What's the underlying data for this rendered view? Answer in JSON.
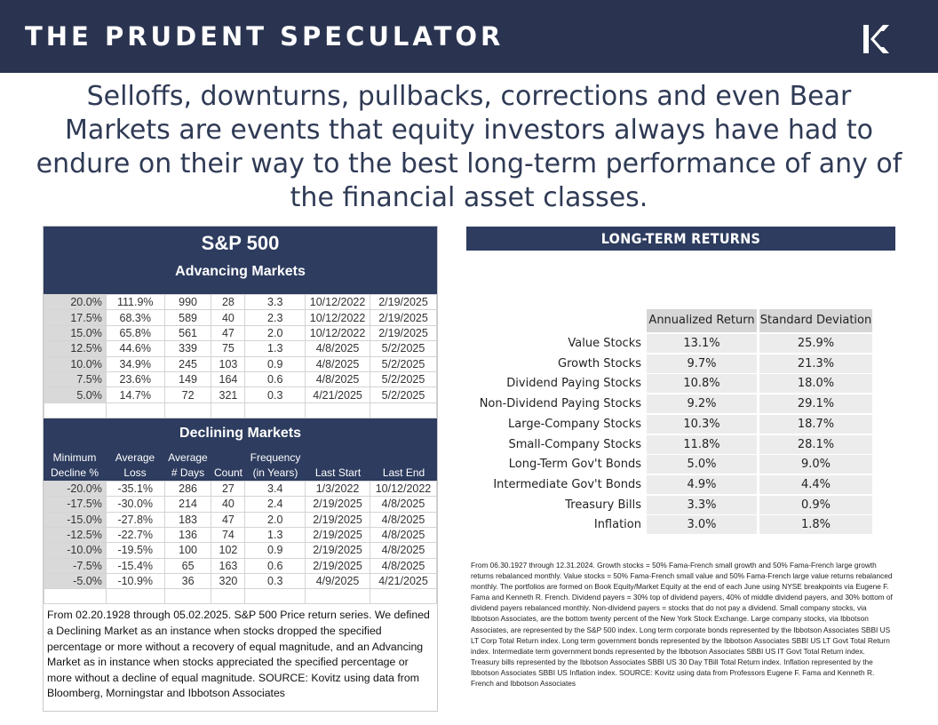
{
  "header": {
    "brand": "THE PRUDENT SPECULATOR"
  },
  "headline": "Selloffs, downturns, pullbacks, corrections and even Bear Markets are events that equity investors always have had to endure on their way to the best long-term performance of any of the financial asset classes.",
  "sp500": {
    "title": "S&P 500",
    "advancing_title": "Advancing Markets",
    "advancing_rows": [
      [
        "20.0%",
        "111.9%",
        "990",
        "28",
        "3.3",
        "10/12/2022",
        "2/19/2025"
      ],
      [
        "17.5%",
        "68.3%",
        "589",
        "40",
        "2.3",
        "10/12/2022",
        "2/19/2025"
      ],
      [
        "15.0%",
        "65.8%",
        "561",
        "47",
        "2.0",
        "10/12/2022",
        "2/19/2025"
      ],
      [
        "12.5%",
        "44.6%",
        "339",
        "75",
        "1.3",
        "4/8/2025",
        "5/2/2025"
      ],
      [
        "10.0%",
        "34.9%",
        "245",
        "103",
        "0.9",
        "4/8/2025",
        "5/2/2025"
      ],
      [
        "7.5%",
        "23.6%",
        "149",
        "164",
        "0.6",
        "4/8/2025",
        "5/2/2025"
      ],
      [
        "5.0%",
        "14.7%",
        "72",
        "321",
        "0.3",
        "4/21/2025",
        "5/2/2025"
      ]
    ],
    "declining_title": "Declining Markets",
    "declining_headers": {
      "row1": [
        "Minimum",
        "Average",
        "Average",
        "",
        "Frequency",
        "",
        ""
      ],
      "row2": [
        "Decline %",
        "Loss",
        "# Days",
        "Count",
        "(in Years)",
        "Last Start",
        "Last End"
      ]
    },
    "declining_rows": [
      [
        "-20.0%",
        "-35.1%",
        "286",
        "27",
        "3.4",
        "1/3/2022",
        "10/12/2022"
      ],
      [
        "-17.5%",
        "-30.0%",
        "214",
        "40",
        "2.4",
        "2/19/2025",
        "4/8/2025"
      ],
      [
        "-15.0%",
        "-27.8%",
        "183",
        "47",
        "2.0",
        "2/19/2025",
        "4/8/2025"
      ],
      [
        "-12.5%",
        "-22.7%",
        "136",
        "74",
        "1.3",
        "2/19/2025",
        "4/8/2025"
      ],
      [
        "-10.0%",
        "-19.5%",
        "100",
        "102",
        "0.9",
        "2/19/2025",
        "4/8/2025"
      ],
      [
        "-7.5%",
        "-15.4%",
        "65",
        "163",
        "0.6",
        "2/19/2025",
        "4/8/2025"
      ],
      [
        "-5.0%",
        "-10.9%",
        "36",
        "320",
        "0.3",
        "4/9/2025",
        "4/21/2025"
      ]
    ],
    "note": "From 02.20.1928 through 05.02.2025. S&P 500 Price return series. We defined a Declining Market as an instance when stocks dropped the specified percentage or more without a recovery of equal magnitude, and an Advancing Market as in instance when stocks appreciated the specified percentage or more without a decline of equal magnitude. SOURCE: Kovitz using data from Bloomberg, Morningstar and Ibbotson Associates"
  },
  "long_term": {
    "title": "LONG-TERM RETURNS",
    "col_headers": [
      "Annualized Return",
      "Standard Deviation"
    ],
    "rows": [
      {
        "label": "Value Stocks",
        "ret": "13.1%",
        "sd": "25.9%"
      },
      {
        "label": "Growth Stocks",
        "ret": "9.7%",
        "sd": "21.3%"
      },
      {
        "label": "Dividend Paying Stocks",
        "ret": "10.8%",
        "sd": "18.0%"
      },
      {
        "label": "Non-Dividend Paying Stocks",
        "ret": "9.2%",
        "sd": "29.1%"
      },
      {
        "label": "Large-Company Stocks",
        "ret": "10.3%",
        "sd": "18.7%"
      },
      {
        "label": "Small-Company Stocks",
        "ret": "11.8%",
        "sd": "28.1%"
      },
      {
        "label": "Long-Term Gov't Bonds",
        "ret": "5.0%",
        "sd": "9.0%"
      },
      {
        "label": "Intermediate Gov't Bonds",
        "ret": "4.9%",
        "sd": "4.4%"
      },
      {
        "label": "Treasury Bills",
        "ret": "3.3%",
        "sd": "0.9%"
      },
      {
        "label": "Inflation",
        "ret": "3.0%",
        "sd": "1.8%"
      }
    ],
    "note": "From 06.30.1927 through 12.31.2024. Growth stocks = 50% Fama-French small growth and 50% Fama-French large growth returns rebalanced monthly. Value stocks = 50% Fama-French small value and 50% Fama-French large value returns rebalanced monthly. The portfolios are formed on Book Equity/Market Equity at the end of each June using NYSE breakpoints via Eugene F. Fama and Kenneth R. French. Dividend payers = 30% top of dividend payers, 40% of middle dividend payers, and 30% bottom of dividend payers rebalanced monthly. Non-dividend payers = stocks that do not pay a dividend. Small company stocks, via Ibbotson Associates, are the bottom twenty percent of the New York Stock Exchange.  Large company stocks, via Ibbotson Associates, are represented by the S&P 500 index.  Long term corporate bonds represented by the Ibbotson Associates SBBI US LT Corp Total Return index. Long term government bonds represented by the Ibbotson Associates SBBI US LT Govt Total Return index.  Intermediate term government bonds represented by the Ibbotson Associates SBBI US IT Govt Total Return index. Treasury bills represented by the Ibbotson Associates SBBI US 30 Day TBill Total Return index. Inflation represented by the Ibbotson Associates SBBI US Inflation index. SOURCE: Kovitz using data from Professors Eugene F. Fama and Kenneth R. French and Ibbotson Associates"
  }
}
